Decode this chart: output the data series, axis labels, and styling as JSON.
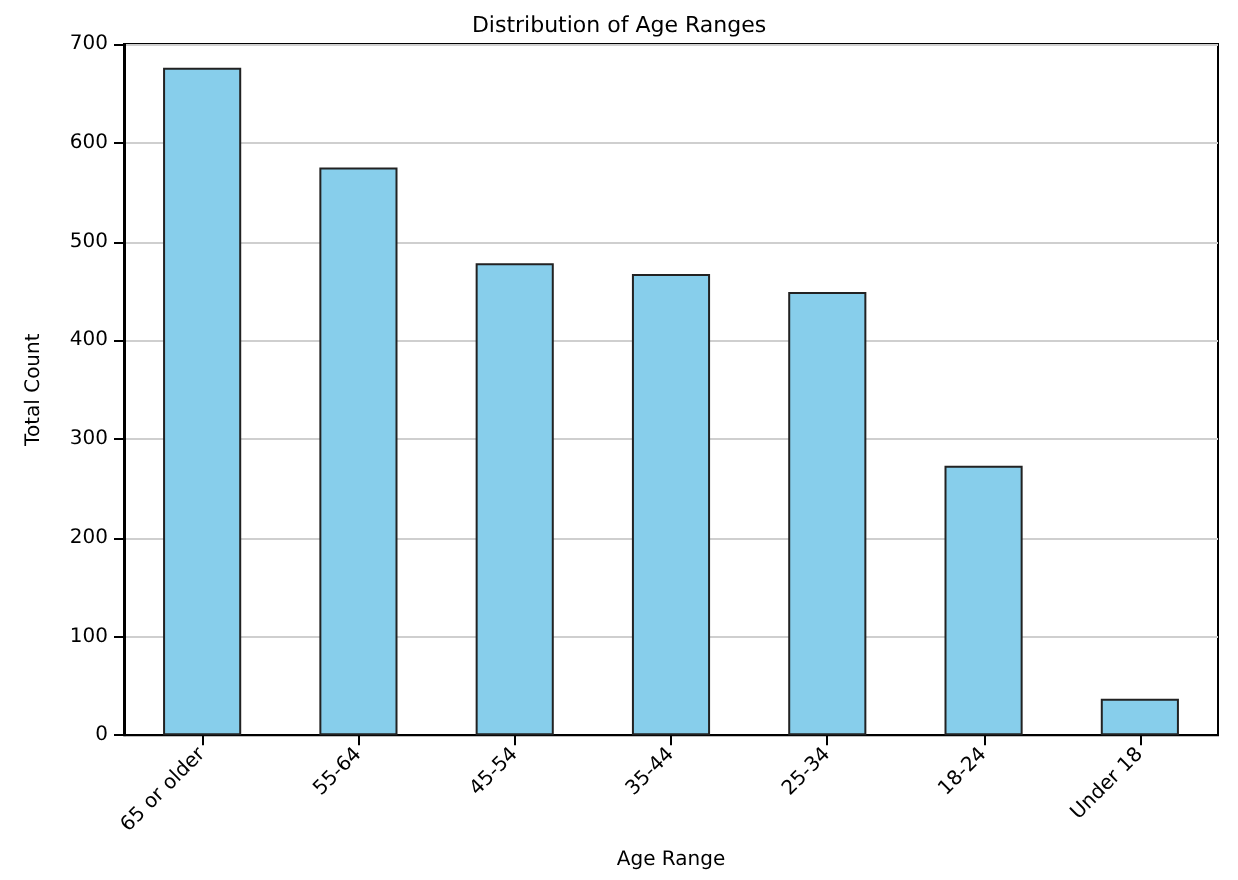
{
  "chart_data": {
    "type": "bar",
    "title": "Distribution of Age Ranges",
    "xlabel": "Age Range",
    "ylabel": "Total Count",
    "categories": [
      "65 or older",
      "55-64",
      "45-54",
      "35-44",
      "25-34",
      "18-24",
      "Under 18"
    ],
    "values": [
      676,
      575,
      478,
      467,
      449,
      273,
      37
    ],
    "color": "#87ceeb",
    "ylim": [
      0,
      700
    ],
    "yticks": [
      0,
      100,
      200,
      300,
      400,
      500,
      600,
      700
    ],
    "grid": "y"
  }
}
